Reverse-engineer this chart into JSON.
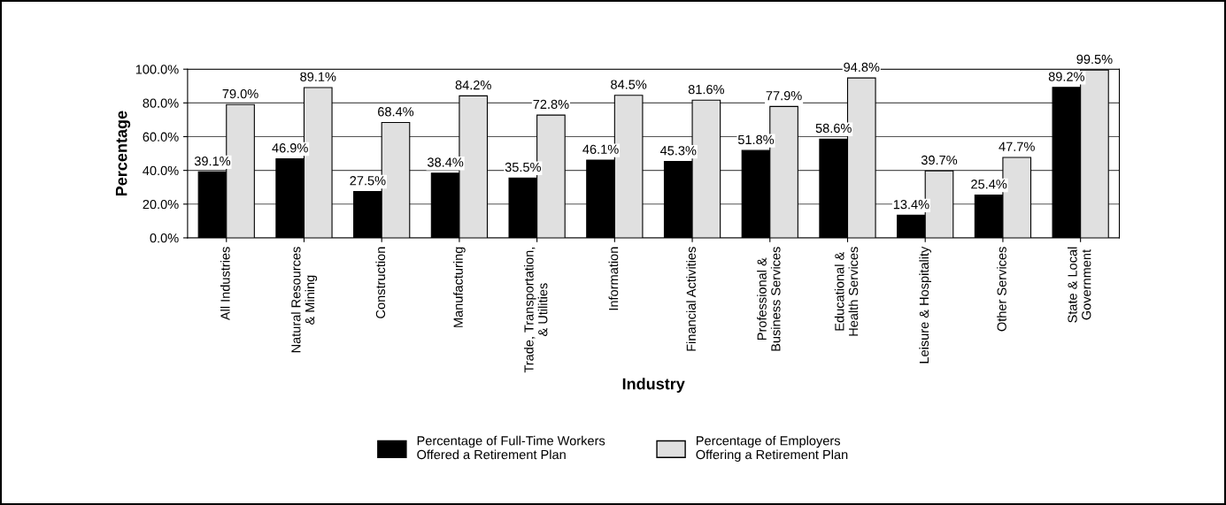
{
  "chart_data": {
    "type": "bar",
    "xlabel": "Industry",
    "ylabel": "Percentage",
    "categories": [
      "All Industries",
      "Natural Resources\n& Mining",
      "Construction",
      "Manufacturing",
      "Trade, Transportation,\n& Utilities",
      "Information",
      "Financial Activities",
      "Professional &\nBusiness Services",
      "Educational &\nHealth Services",
      "Leisure & Hospitality",
      "Other Services",
      "State & Local\nGovernment"
    ],
    "series": [
      {
        "name": "Percentage of Full-Time Workers\nOffered a Retirement Plan",
        "color": "#000000",
        "values": [
          39.1,
          46.9,
          27.5,
          38.4,
          35.5,
          46.1,
          45.3,
          51.8,
          58.6,
          13.4,
          25.4,
          89.2
        ],
        "value_labels": [
          "39.1%",
          "46.9%",
          "27.5%",
          "38.4%",
          "35.5%",
          "46.1%",
          "45.3%",
          "51.8%",
          "58.6%",
          "13.4%",
          "25.4%",
          "89.2%"
        ]
      },
      {
        "name": "Percentage of Employers\nOffering a Retirement Plan",
        "color": "#e0e0e0",
        "values": [
          79.0,
          89.1,
          68.4,
          84.2,
          72.8,
          84.5,
          81.6,
          77.9,
          94.8,
          39.7,
          47.7,
          99.5
        ],
        "value_labels": [
          "79.0%",
          "89.1%",
          "68.4%",
          "84.2%",
          "72.8%",
          "84.5%",
          "81.6%",
          "77.9%",
          "94.8%",
          "39.7%",
          "47.7%",
          "99.5%"
        ]
      }
    ],
    "ylim": [
      0,
      100
    ],
    "yticks": [
      {
        "value": 0,
        "label": "0.0%"
      },
      {
        "value": 20,
        "label": "20.0%"
      },
      {
        "value": 40,
        "label": "40.0%"
      },
      {
        "value": 60,
        "label": "60.0%"
      },
      {
        "value": 80,
        "label": "80.0%"
      },
      {
        "value": 100,
        "label": "100.0%"
      }
    ],
    "grid": "y",
    "legend": "bottom"
  }
}
